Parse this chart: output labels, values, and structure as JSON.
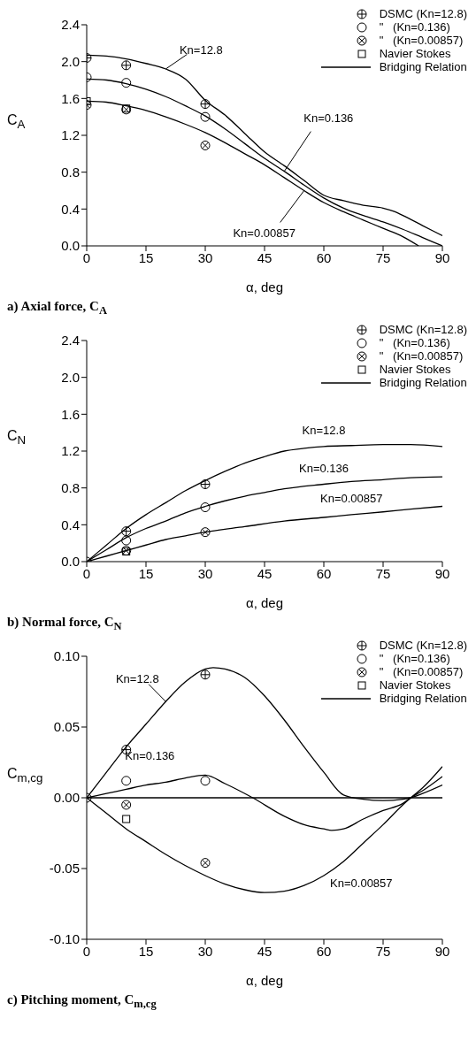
{
  "chart_data": [
    {
      "type": "line",
      "title": "a) Axial force, C$_{A}$",
      "xlabel": "α, deg",
      "ylabel": "C$_{A}$",
      "xlim": [
        0,
        90
      ],
      "xticks": [
        0,
        15,
        30,
        45,
        60,
        75,
        90
      ],
      "ylim": [
        0,
        2.4
      ],
      "yticks": [
        {
          "value": 0,
          "label": "0.0"
        },
        0.4,
        0.8,
        1.2,
        1.6,
        {
          "value": 2,
          "label": "2.0"
        },
        2.4
      ],
      "legend": "top right",
      "line_style": "solid",
      "series": [
        {
          "name": "DSMC (Kn=12.8)",
          "type": "scatter",
          "marker": "circle-plus",
          "color": "#000000",
          "x": [
            0,
            10,
            30
          ],
          "values": [
            2.04,
            1.96,
            1.54
          ]
        },
        {
          "name": "\"   (Kn=0.136)",
          "type": "scatter",
          "marker": "circle",
          "color": "#000000",
          "x": [
            0,
            10,
            30
          ],
          "values": [
            1.83,
            1.77,
            1.4
          ]
        },
        {
          "name": "\"   (Kn=0.00857)",
          "type": "scatter",
          "marker": "circle-x",
          "color": "#000000",
          "x": [
            0,
            10,
            30
          ],
          "values": [
            1.53,
            1.48,
            1.09
          ]
        },
        {
          "name": "Navier Stokes",
          "type": "scatter",
          "marker": "square",
          "color": "#000000",
          "x": [
            0,
            10
          ],
          "values": [
            1.57,
            1.49
          ]
        },
        {
          "name": "Bridging Relation",
          "type": "line",
          "marker": "none",
          "color": "#000000",
          "x": [
            0,
            5,
            10,
            15,
            20,
            25,
            30,
            35,
            40,
            45,
            50,
            55,
            60,
            65,
            70,
            75,
            78,
            80,
            85,
            90
          ],
          "values": [
            2.07,
            2.06,
            2.03,
            1.98,
            1.92,
            1.81,
            1.58,
            1.42,
            1.22,
            1.02,
            0.87,
            0.71,
            0.55,
            0.49,
            0.44,
            0.41,
            0.37,
            0.33,
            0.22,
            0.11
          ]
        },
        {
          "type": "line",
          "marker": "none",
          "color": "#000000",
          "x": [
            0,
            5,
            10,
            15,
            20,
            25,
            30,
            35,
            40,
            45,
            50,
            55,
            60,
            65,
            70,
            75,
            80,
            85,
            90
          ],
          "values": [
            1.81,
            1.8,
            1.76,
            1.7,
            1.62,
            1.52,
            1.41,
            1.27,
            1.11,
            0.95,
            0.81,
            0.66,
            0.52,
            0.41,
            0.33,
            0.26,
            0.18,
            0.09,
            0.0
          ]
        },
        {
          "type": "line",
          "marker": "none",
          "color": "#000000",
          "x": [
            0,
            5,
            10,
            15,
            20,
            25,
            30,
            35,
            40,
            45,
            50,
            55,
            60,
            65,
            70,
            75,
            80,
            84
          ],
          "values": [
            1.57,
            1.56,
            1.52,
            1.47,
            1.4,
            1.32,
            1.23,
            1.12,
            1.0,
            0.88,
            0.74,
            0.6,
            0.47,
            0.37,
            0.28,
            0.19,
            0.1,
            0.0
          ]
        }
      ],
      "annotations": [
        {
          "text": "Kn=12.8",
          "x": 20,
          "y": 1.92
        },
        {
          "text": "Kn=0.136",
          "x": 50,
          "y": 0.81
        },
        {
          "text": "Kn=0.00857",
          "x": 55,
          "y": 0.6
        }
      ]
    },
    {
      "type": "line",
      "title": "b) Normal force, C$_{N}$",
      "xlabel": "α, deg",
      "ylabel": "C$_{N}$",
      "xlim": [
        0,
        90
      ],
      "xticks": [
        0,
        15,
        30,
        45,
        60,
        75,
        90
      ],
      "ylim": [
        0,
        2.4
      ],
      "yticks": [
        {
          "value": 0,
          "label": "0.0"
        },
        0.4,
        0.8,
        1.2,
        1.6,
        {
          "value": 2,
          "label": "2.0"
        },
        2.4
      ],
      "legend": "top right",
      "line_style": "solid",
      "series": [
        {
          "name": "DSMC (Kn=12.8)",
          "type": "scatter",
          "marker": "circle-plus",
          "color": "#000000",
          "x": [
            10,
            30
          ],
          "values": [
            0.33,
            0.84
          ]
        },
        {
          "name": "\"   (Kn=0.136)",
          "type": "scatter",
          "marker": "circle",
          "color": "#000000",
          "x": [
            0,
            10,
            30
          ],
          "values": [
            0,
            0.23,
            0.59
          ]
        },
        {
          "name": "\"   (Kn=0.00857)",
          "type": "scatter",
          "marker": "circle-x",
          "color": "#000000",
          "x": [
            10,
            30
          ],
          "values": [
            0.12,
            0.32
          ]
        },
        {
          "name": "Navier Stokes",
          "type": "scatter",
          "marker": "square",
          "color": "#000000",
          "x": [
            10
          ],
          "values": [
            0.11
          ]
        },
        {
          "name": "Bridging Relation",
          "type": "line",
          "marker": "none",
          "color": "#000000",
          "x": [
            0,
            5,
            10,
            15,
            20,
            25,
            30,
            35,
            40,
            45,
            50,
            55,
            60,
            67,
            75,
            82,
            90
          ],
          "values": [
            0,
            0.18,
            0.36,
            0.51,
            0.64,
            0.77,
            0.88,
            0.98,
            1.07,
            1.14,
            1.2,
            1.23,
            1.25,
            1.26,
            1.27,
            1.27,
            1.25
          ]
        },
        {
          "type": "line",
          "marker": "none",
          "color": "#000000",
          "x": [
            0,
            5,
            10,
            15,
            20,
            25,
            30,
            35,
            40,
            45,
            50,
            60,
            67,
            75,
            82,
            90
          ],
          "values": [
            0,
            0.13,
            0.26,
            0.36,
            0.44,
            0.53,
            0.6,
            0.66,
            0.71,
            0.75,
            0.79,
            0.84,
            0.87,
            0.89,
            0.91,
            0.92
          ]
        },
        {
          "type": "line",
          "marker": "none",
          "color": "#000000",
          "x": [
            0,
            5,
            10,
            15,
            20,
            25,
            30,
            40,
            50,
            60,
            67,
            75,
            82,
            90
          ],
          "values": [
            0,
            0.06,
            0.12,
            0.18,
            0.24,
            0.28,
            0.32,
            0.38,
            0.44,
            0.48,
            0.51,
            0.54,
            0.57,
            0.6
          ]
        }
      ],
      "annotations": [
        {
          "text": "Kn=12.8",
          "x": 60,
          "y": 1.25
        },
        {
          "text": "Kn=0.136",
          "x": 60,
          "y": 0.84
        },
        {
          "text": "Kn=0.00857",
          "x": 67,
          "y": 0.51
        }
      ]
    },
    {
      "type": "line",
      "title": "c) Pitching moment, C$_{m,cg}$",
      "xlabel": "α, deg",
      "ylabel": "C$_{m,cg}$",
      "xlim": [
        0,
        90
      ],
      "xticks": [
        0,
        15,
        30,
        45,
        60,
        75,
        90
      ],
      "ylim": [
        -0.1,
        0.1
      ],
      "yticks": [
        {
          "value": -0.1,
          "label": "-0.10"
        },
        {
          "value": -0.05,
          "label": "-0.05"
        },
        {
          "value": 0,
          "label": "0.00"
        },
        {
          "value": 0.05,
          "label": "0.05"
        },
        {
          "value": 0.1,
          "label": "0.10"
        }
      ],
      "legend": "top right",
      "line_style": "solid",
      "ref_lines": [
        {
          "axis": "y",
          "value": 0,
          "color": "#000000"
        }
      ],
      "series": [
        {
          "name": "DSMC (Kn=12.8)",
          "type": "scatter",
          "marker": "circle-plus",
          "color": "#000000",
          "x": [
            10,
            30
          ],
          "values": [
            0.034,
            0.087
          ]
        },
        {
          "name": "\"   (Kn=0.136)",
          "type": "scatter",
          "marker": "circle",
          "color": "#000000",
          "x": [
            0,
            10,
            30
          ],
          "values": [
            0,
            0.012,
            0.012
          ]
        },
        {
          "name": "\"   (Kn=0.00857)",
          "type": "scatter",
          "marker": "circle-x",
          "color": "#000000",
          "x": [
            10,
            30
          ],
          "values": [
            -0.005,
            -0.046
          ]
        },
        {
          "name": "Navier Stokes",
          "type": "scatter",
          "marker": "square",
          "color": "#000000",
          "x": [
            10
          ],
          "values": [
            -0.015
          ]
        },
        {
          "name": "Bridging Relation",
          "type": "line",
          "marker": "none",
          "color": "#000000",
          "x": [
            0,
            5,
            10,
            15,
            20,
            25,
            30,
            32,
            35,
            40,
            45,
            50,
            55,
            60,
            65,
            70,
            75,
            80,
            82,
            85,
            90
          ],
          "values": [
            0,
            0.018,
            0.036,
            0.052,
            0.068,
            0.082,
            0.091,
            0.092,
            0.091,
            0.085,
            0.072,
            0.055,
            0.036,
            0.018,
            0.002,
            -0.001,
            -0.002,
            -0.001,
            0,
            0.003,
            0.009
          ]
        },
        {
          "type": "line",
          "marker": "none",
          "color": "#000000",
          "x": [
            0,
            5,
            10,
            15,
            20,
            25,
            30,
            35,
            42,
            50,
            55,
            60,
            62,
            65,
            70,
            75,
            80,
            82,
            85,
            90
          ],
          "values": [
            0,
            0.003,
            0.006,
            0.009,
            0.011,
            0.014,
            0.016,
            0.01,
            0,
            -0.013,
            -0.019,
            -0.022,
            -0.023,
            -0.022,
            -0.015,
            -0.009,
            -0.004,
            0,
            0.005,
            0.015
          ]
        },
        {
          "type": "line",
          "marker": "none",
          "color": "#000000",
          "x": [
            0,
            5,
            10,
            15,
            20,
            25,
            30,
            35,
            40,
            45,
            50,
            55,
            60,
            65,
            70,
            75,
            80,
            82,
            85,
            90
          ],
          "values": [
            0,
            -0.011,
            -0.022,
            -0.031,
            -0.04,
            -0.048,
            -0.055,
            -0.061,
            -0.065,
            -0.067,
            -0.066,
            -0.062,
            -0.055,
            -0.045,
            -0.032,
            -0.019,
            -0.005,
            0,
            0.007,
            0.022
          ]
        }
      ],
      "annotations": [
        {
          "text": "Kn=12.8",
          "x": 20,
          "y": 0.068
        },
        {
          "text": "Kn=0.136",
          "x": 20,
          "y": 0.011
        },
        {
          "text": "Kn=0.00857",
          "x": 65,
          "y": -0.045
        }
      ]
    }
  ]
}
